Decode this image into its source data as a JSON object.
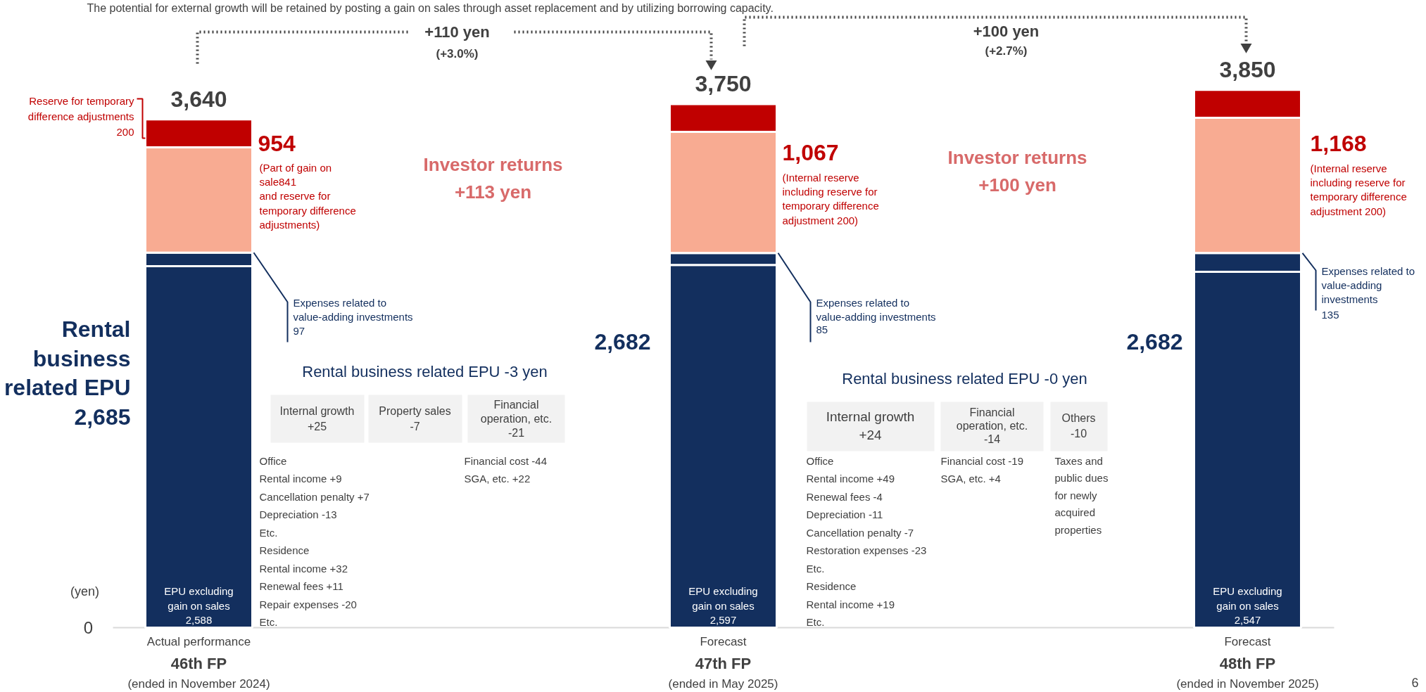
{
  "chart_data": {
    "type": "bar",
    "stacked": true,
    "categories": [
      "Actual performance\n46th FP\n(ended in November 2024)",
      "Forecast\n47th FP\n(ended in May 2025)",
      "Forecast\n48th FP\n(ended in November 2025)"
    ],
    "series": [
      {
        "name": "EPU excluding gain on sales",
        "color": "#132f5e",
        "values": [
          2588,
          2597,
          2547
        ],
        "value_labels": [
          "2,588",
          "2,597",
          "2,547"
        ]
      },
      {
        "name": "Expenses related to value-adding investments",
        "color": "#132f5e",
        "values": [
          97,
          85,
          135
        ],
        "value_labels": [
          "97",
          "85",
          "135"
        ]
      },
      {
        "color": "#f8ab92",
        "values": [
          754,
          867,
          968
        ]
      },
      {
        "color": "#c00000",
        "values": [
          200,
          200,
          200
        ]
      }
    ],
    "totals": [
      "3,640",
      "3,750",
      "3,850"
    ],
    "ylabel": "(yen)",
    "annotations": [
      "The potential for external growth will be retained by posting a gain on sales through asset replacement and by utilizing borrowing capacity.",
      "+110 yen",
      "(+3.0%)",
      "+100 yen",
      "(+2.7%)",
      "954",
      "(Part of gain on\nsale841\nand reserve for\ntemporary difference\nadjustments)",
      "Investor returns\n+113 yen",
      "Investor returns\n+100 yen",
      "Rental\nbusiness\nrelated EPU\n2,685",
      "Rental business related EPU -3 yen",
      "Internal growth\n+25",
      "Property sales\n-7",
      "Financial\noperation, etc.\n-21",
      "Office\nRental income +9\nCancellation penalty +7\nDepreciation -13\nEtc.\nResidence\nRental income +32\nRenewal fees +11\nRepair expenses -20\nEtc.",
      "Financial cost -44\nSGA, etc. +22",
      "2,682",
      "1,067",
      "(Internal reserve\nincluding reserve for\ntemporary difference\nadjustment 200)",
      "Rental business related EPU -0 yen",
      "Internal growth\n+24",
      "Financial\noperation, etc.\n-14",
      "Others\n-10",
      "Office\nRental income +49\nRenewal fees -4\nDepreciation -11\nCancellation penalty -7\nRestoration expenses -23\nEtc.\nResidence\nRental income +19\nEtc.",
      "Financial cost -19\nSGA, etc. +4",
      "Taxes and\npublic dues\nfor newly\nacquired\nproperties",
      "2,682",
      "1,168",
      "(Internal reserve\nincluding reserve for\ntemporary difference\nadjustment 200)",
      "6",
      "0",
      "Expenses related to\nvalue-adding investments",
      "Expenses related to\nvalue-adding\ninvestments",
      "Reserve for temporary\ndifference adjustments\n200"
    ]
  }
}
